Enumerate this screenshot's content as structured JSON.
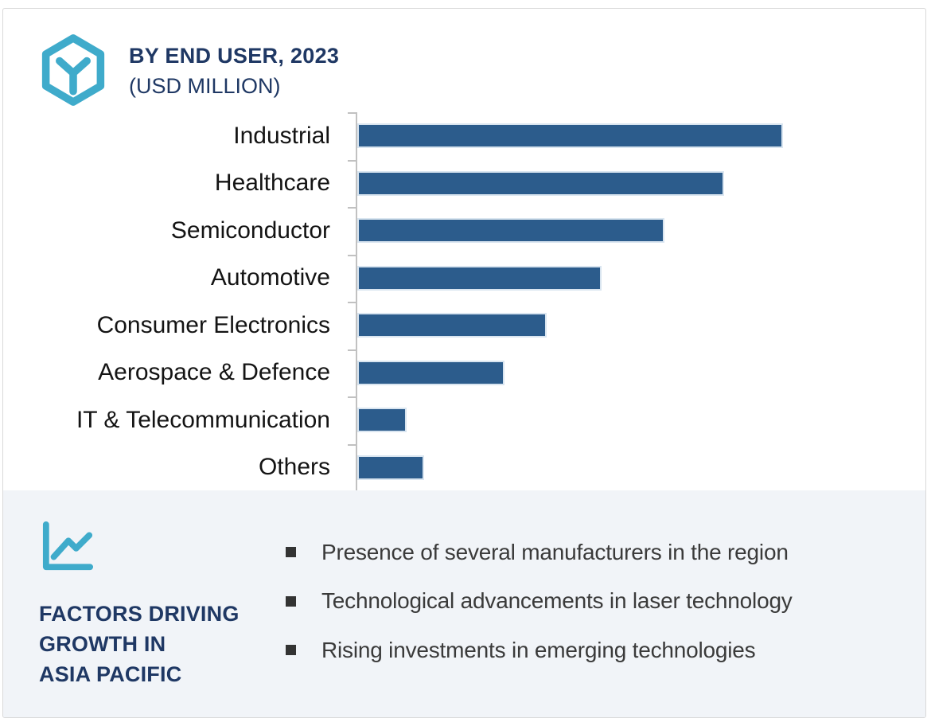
{
  "header": {
    "title": "BY END USER, 2023",
    "subtitle": "(USD MILLION)",
    "icon": "hex-cube-icon"
  },
  "chart_data": {
    "type": "bar",
    "orientation": "horizontal",
    "title": "BY END USER, 2023 (USD MILLION)",
    "categories": [
      "Industrial",
      "Healthcare",
      "Semiconductor",
      "Automotive",
      "Consumer Electronics",
      "Aerospace & Defence",
      "IT & Telecommunication",
      "Others"
    ],
    "values": [
      100,
      86,
      72,
      57,
      44,
      34,
      11,
      15
    ],
    "value_scale": "relative, estimated from bar lengths (Industrial = 100); no numeric axis labels are shown",
    "xlabel": "",
    "ylabel": "",
    "grid": false,
    "value_labels_visible": false,
    "legend": "none",
    "bar_color": "#2c5c8c",
    "axis_color": "#c1c1c1"
  },
  "factors": {
    "icon": "line-chart-icon",
    "heading_lines": [
      "FACTORS DRIVING",
      "GROWTH IN",
      "ASIA PACIFIC"
    ],
    "bullets": [
      "Presence of several manufacturers in the region",
      "Technological advancements in laser technology",
      "Rising investments in emerging technologies"
    ]
  },
  "colors": {
    "accent_teal": "#3fabcb",
    "navy": "#1f3864",
    "bar_blue": "#2c5c8c",
    "section_bg": "#f1f4f8",
    "card_border": "#d9d9d9",
    "axis_gray": "#c1c1c1",
    "bullet_text": "#3a3a3a"
  }
}
